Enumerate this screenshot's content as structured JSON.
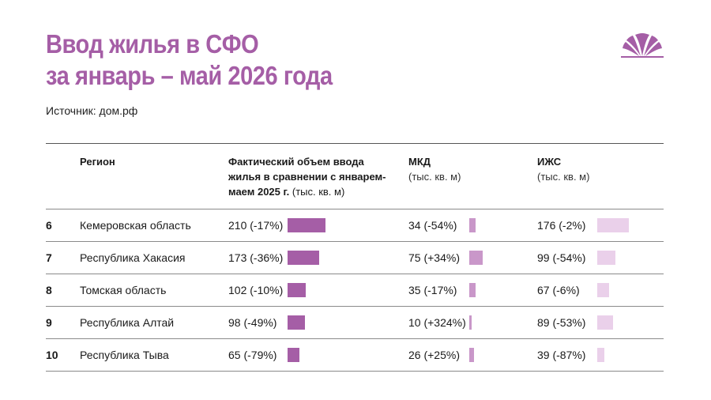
{
  "title": [
    "Ввод жилья в СФО",
    "за январь – май 2026 года"
  ],
  "source": "Источник: дом.рф",
  "colors": {
    "accent": "#a55ea6",
    "mkd": "#c997c9",
    "izhs": "#ead0ea"
  },
  "headers": {
    "region": "Регион",
    "total": [
      "Фактический объем ввода",
      "жилья в сравнении с январем-",
      "маем 2025 г."
    ],
    "total_unit": "(тыс. кв. м)",
    "mkd": "МКД",
    "mkd_unit": "(тыс. кв. м)",
    "izhs": "ИЖС",
    "izhs_unit": "(тыс. кв. м)"
  },
  "chart_data": {
    "type": "table",
    "columns": [
      "Регион",
      "Фактический объем ввода жилья в сравнении с январем-маем 2025 г. (тыс. кв. м)",
      "МКД (тыс. кв. м)",
      "ИЖС (тыс. кв. м)"
    ],
    "rows": [
      {
        "rank": "6",
        "region": "Кемеровская область",
        "total": 210,
        "total_label": "210 (-17%)",
        "mkd": 34,
        "mkd_label": "34 (-54%)",
        "izhs": 176,
        "izhs_label": "176 (-2%)"
      },
      {
        "rank": "7",
        "region": "Республика Хакасия",
        "total": 173,
        "total_label": "173 (-36%)",
        "mkd": 75,
        "mkd_label": "75 (+34%)",
        "izhs": 99,
        "izhs_label": "99 (-54%)"
      },
      {
        "rank": "8",
        "region": "Томская область",
        "total": 102,
        "total_label": "102 (-10%)",
        "mkd": 35,
        "mkd_label": "35 (-17%)",
        "izhs": 67,
        "izhs_label": "67 (-6%)"
      },
      {
        "rank": "9",
        "region": "Республика Алтай",
        "total": 98,
        "total_label": "98 (-49%)",
        "mkd": 10,
        "mkd_label": "10 (+324%)",
        "izhs": 89,
        "izhs_label": "89 (-53%)"
      },
      {
        "rank": "10",
        "region": "Республика Тыва",
        "total": 65,
        "total_label": "65 (-79%)",
        "mkd": 26,
        "mkd_label": "26 (+25%)",
        "izhs": 39,
        "izhs_label": "39 (-87%)"
      }
    ]
  }
}
